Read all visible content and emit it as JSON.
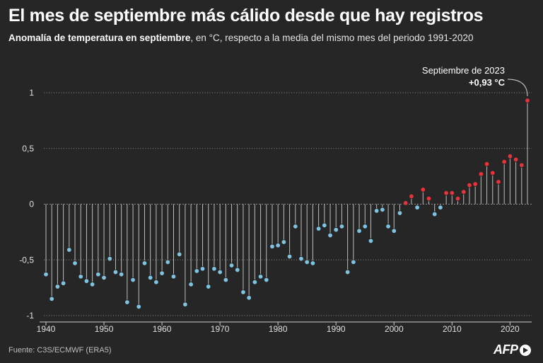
{
  "title": "El mes de septiembre más cálido desde que hay registros",
  "subtitle_bold": "Anomalía de temperatura en septiembre",
  "subtitle_rest": ", en °C, respecto a la media del mismo mes del periodo 1991-2020",
  "source": "Fuente: C3S/ECMWF (ERA5)",
  "logo_text": "AFP",
  "annotation": {
    "line1": "Septiembre de 2023",
    "line2": "+0,93 °C"
  },
  "colors": {
    "background": "#262626",
    "negative": "#7fc3e0",
    "positive": "#e8323c",
    "stem": "#bdbdbd",
    "grid": "#8c8c8c"
  },
  "chart_data": {
    "type": "scatter",
    "title": "El mes de septiembre más cálido desde que hay registros",
    "xlabel": "",
    "ylabel": "",
    "xlim": [
      1940,
      2023
    ],
    "ylim": [
      -1,
      1
    ],
    "x_ticks": [
      1940,
      1950,
      1960,
      1970,
      1980,
      1990,
      2000,
      2010,
      2020
    ],
    "y_ticks": [
      -1,
      -0.5,
      0,
      0.5,
      1
    ],
    "y_tick_labels": [
      "-1",
      "-0,5",
      "0",
      "0,5",
      "1"
    ],
    "grid": "dotted horizontal",
    "x": [
      1940,
      1941,
      1942,
      1943,
      1944,
      1945,
      1946,
      1947,
      1948,
      1949,
      1950,
      1951,
      1952,
      1953,
      1954,
      1955,
      1956,
      1957,
      1958,
      1959,
      1960,
      1961,
      1962,
      1963,
      1964,
      1965,
      1966,
      1967,
      1968,
      1969,
      1970,
      1971,
      1972,
      1973,
      1974,
      1975,
      1976,
      1977,
      1978,
      1979,
      1980,
      1981,
      1982,
      1983,
      1984,
      1985,
      1986,
      1987,
      1988,
      1989,
      1990,
      1991,
      1992,
      1993,
      1994,
      1995,
      1996,
      1997,
      1998,
      1999,
      2000,
      2001,
      2002,
      2003,
      2004,
      2005,
      2006,
      2007,
      2008,
      2009,
      2010,
      2011,
      2012,
      2013,
      2014,
      2015,
      2016,
      2017,
      2018,
      2019,
      2020,
      2021,
      2022,
      2023
    ],
    "values": [
      -0.63,
      -0.85,
      -0.74,
      -0.71,
      -0.41,
      -0.53,
      -0.65,
      -0.69,
      -0.72,
      -0.63,
      -0.66,
      -0.49,
      -0.61,
      -0.63,
      -0.88,
      -0.68,
      -0.92,
      -0.53,
      -0.66,
      -0.7,
      -0.62,
      -0.52,
      -0.65,
      -0.45,
      -0.9,
      -0.72,
      -0.6,
      -0.58,
      -0.74,
      -0.58,
      -0.61,
      -0.68,
      -0.55,
      -0.59,
      -0.79,
      -0.84,
      -0.7,
      -0.65,
      -0.68,
      -0.38,
      -0.37,
      -0.34,
      -0.47,
      -0.2,
      -0.49,
      -0.52,
      -0.53,
      -0.22,
      -0.19,
      -0.28,
      -0.23,
      -0.2,
      -0.61,
      -0.52,
      -0.24,
      -0.2,
      -0.33,
      -0.06,
      -0.05,
      -0.2,
      -0.24,
      -0.08,
      0.01,
      0.07,
      -0.03,
      0.13,
      0.05,
      -0.09,
      -0.03,
      0.1,
      0.1,
      0.05,
      0.11,
      0.17,
      0.18,
      0.27,
      0.36,
      0.28,
      0.2,
      0.38,
      0.43,
      0.4,
      0.35,
      0.93
    ]
  }
}
